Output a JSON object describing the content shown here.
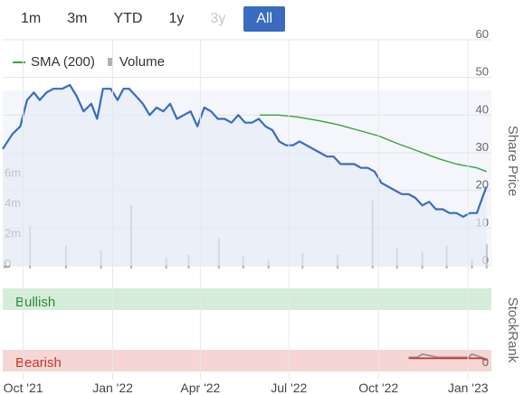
{
  "range_selector": {
    "buttons": [
      {
        "label": "1m",
        "state": "normal"
      },
      {
        "label": "3m",
        "state": "normal"
      },
      {
        "label": "YTD",
        "state": "normal"
      },
      {
        "label": "1y",
        "state": "normal"
      },
      {
        "label": "3y",
        "state": "disabled"
      },
      {
        "label": "All",
        "state": "active"
      }
    ]
  },
  "legend": {
    "sma_label": "SMA (200)",
    "volume_label": "Volume"
  },
  "colors": {
    "price": "#3a6bbf",
    "sma": "#3aa33a",
    "volume": "#b0b0b0",
    "bullish_band": "#d5ecd9",
    "bearish_band": "#f6d5d5",
    "stockrank_line": "#c0392b",
    "accent": "#3a6bbf"
  },
  "chart_data": [
    {
      "type": "line",
      "y_axis_title": "Share Price",
      "ylim": [
        0,
        60
      ],
      "y_ticks": [
        "0",
        "10",
        "20",
        "30",
        "40",
        "50",
        "60"
      ],
      "volume_ticks": [
        "0",
        "2m",
        "4m",
        "6m"
      ],
      "volume_ylim": [
        0,
        7000000
      ],
      "xlim": [
        "2021-09-10",
        "2023-01-25"
      ],
      "x_ticks": [
        {
          "date": "2021-10-01",
          "label": "Oct '21"
        },
        {
          "date": "2022-01-01",
          "label": "Jan '22"
        },
        {
          "date": "2022-04-01",
          "label": "Apr '22"
        },
        {
          "date": "2022-07-01",
          "label": "Jul '22"
        },
        {
          "date": "2022-10-01",
          "label": "Oct '22"
        },
        {
          "date": "2023-01-01",
          "label": "Jan '23"
        }
      ],
      "grid": true,
      "legend_position": "top-left",
      "series": [
        {
          "name": "Price",
          "x": [
            "2021-09-10",
            "2021-09-20",
            "2021-09-28",
            "2021-10-05",
            "2021-10-12",
            "2021-10-18",
            "2021-10-25",
            "2021-11-01",
            "2021-11-10",
            "2021-11-18",
            "2021-11-25",
            "2021-12-02",
            "2021-12-10",
            "2021-12-16",
            "2021-12-22",
            "2021-12-30",
            "2022-01-06",
            "2022-01-12",
            "2022-01-18",
            "2022-01-25",
            "2022-02-01",
            "2022-02-08",
            "2022-02-15",
            "2022-02-22",
            "2022-03-01",
            "2022-03-08",
            "2022-03-15",
            "2022-03-22",
            "2022-03-29",
            "2022-04-05",
            "2022-04-12",
            "2022-04-19",
            "2022-04-26",
            "2022-05-03",
            "2022-05-10",
            "2022-05-17",
            "2022-05-24",
            "2022-05-31",
            "2022-06-07",
            "2022-06-14",
            "2022-06-21",
            "2022-06-28",
            "2022-07-05",
            "2022-07-12",
            "2022-07-19",
            "2022-07-26",
            "2022-08-02",
            "2022-08-09",
            "2022-08-16",
            "2022-08-23",
            "2022-08-30",
            "2022-09-06",
            "2022-09-13",
            "2022-09-20",
            "2022-09-27",
            "2022-10-04",
            "2022-10-11",
            "2022-10-18",
            "2022-10-25",
            "2022-11-01",
            "2022-11-08",
            "2022-11-15",
            "2022-11-22",
            "2022-11-29",
            "2022-12-06",
            "2022-12-13",
            "2022-12-20",
            "2022-12-27",
            "2023-01-03",
            "2023-01-10",
            "2023-01-17",
            "2023-01-20"
          ],
          "y": [
            31,
            35,
            37,
            44,
            46,
            44,
            46,
            47,
            47,
            48,
            45,
            41,
            43,
            39,
            47,
            47,
            44,
            47,
            47,
            45,
            43,
            40,
            42,
            41,
            43,
            39,
            40,
            41,
            37,
            42,
            41,
            39,
            39,
            38,
            40,
            38,
            38,
            39,
            37,
            36,
            33,
            32,
            32,
            33,
            32,
            31,
            30,
            29,
            29,
            27,
            27,
            27,
            26,
            26,
            25,
            22,
            21,
            20,
            19,
            19,
            18,
            16,
            17,
            15,
            15,
            14,
            14,
            13,
            14,
            14,
            19,
            21
          ]
        },
        {
          "name": "SMA (200)",
          "x": [
            "2022-06-01",
            "2022-06-20",
            "2022-07-10",
            "2022-08-01",
            "2022-08-20",
            "2022-09-10",
            "2022-10-01",
            "2022-10-20",
            "2022-11-10",
            "2022-12-01",
            "2022-12-20",
            "2023-01-10",
            "2023-01-20"
          ],
          "y": [
            40,
            40,
            39.5,
            38.5,
            37.5,
            36,
            34.5,
            32.5,
            30.5,
            28.5,
            27,
            26,
            25
          ]
        },
        {
          "name": "Volume",
          "x": [
            "2021-09-12",
            "2021-10-08",
            "2021-11-14",
            "2021-12-20",
            "2022-01-20",
            "2022-02-25",
            "2022-03-20",
            "2022-04-20",
            "2022-05-15",
            "2022-06-10",
            "2022-07-15",
            "2022-08-20",
            "2022-09-25",
            "2022-10-20",
            "2022-11-15",
            "2022-12-10",
            "2023-01-05",
            "2023-01-20"
          ],
          "y": [
            500000,
            2800000,
            1500000,
            1200000,
            4200000,
            700000,
            900000,
            2000000,
            800000,
            600000,
            1000000,
            900000,
            4500000,
            1400000,
            1100000,
            1500000,
            600000,
            1600000
          ]
        }
      ]
    },
    {
      "type": "line",
      "y_axis_title": "StockRank",
      "band_labels": {
        "top": "Bullish",
        "bottom": "Bearish"
      },
      "ylim": [
        0,
        100
      ],
      "y_ticks": [
        "0"
      ],
      "xlim": [
        "2021-09-10",
        "2023-01-25"
      ],
      "series": [
        {
          "name": "StockRank",
          "x": [
            "2022-11-01",
            "2022-11-10",
            "2022-11-15",
            "2022-12-01",
            "2022-12-20",
            "2023-01-01",
            "2023-01-05",
            "2023-01-15",
            "2023-01-20"
          ],
          "y": [
            16,
            16,
            20,
            16,
            16,
            16,
            20,
            16,
            14
          ]
        }
      ]
    }
  ]
}
